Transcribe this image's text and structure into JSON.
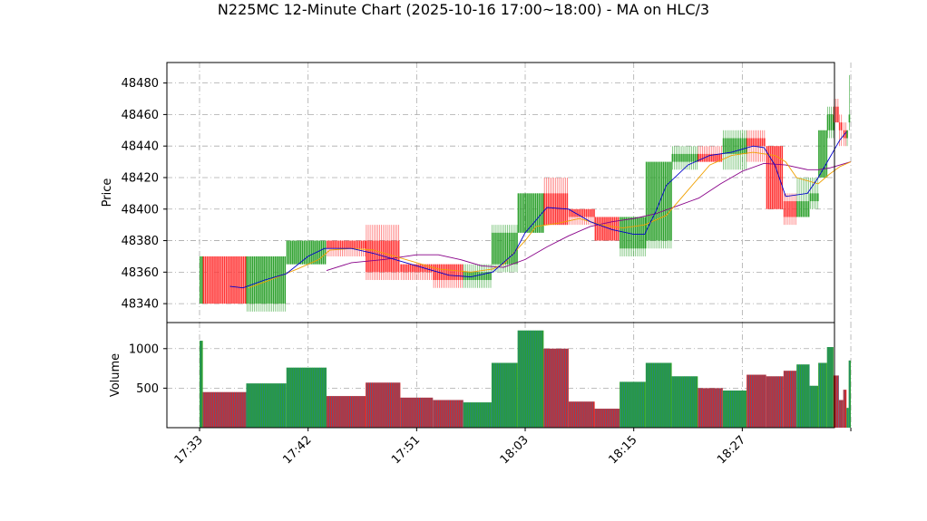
{
  "page": {
    "title": "N225MC 12-Minute Chart (2025-10-16 17:00~18:00) - MA on HLC/3"
  },
  "chart_data": {
    "type": "candlestick",
    "title": "N225MC 12-Minute Chart (2025-10-16 17:00~18:00) - MA on HLC/3",
    "price_panel": {
      "ylabel": "Price",
      "ylim": [
        48328,
        48493
      ],
      "yticks": [
        48340,
        48360,
        48380,
        48400,
        48420,
        48440,
        48460,
        48480
      ],
      "grid": true
    },
    "volume_panel": {
      "ylabel": "Volume",
      "ylim": [
        0,
        1330
      ],
      "yticks": [
        500,
        1000
      ],
      "grid": true
    },
    "xaxis": {
      "range": [
        0,
        61
      ],
      "ticks": [
        {
          "x": 0,
          "label": "17:33"
        },
        {
          "x": 10,
          "label": "17:42"
        },
        {
          "x": 20,
          "label": "17:51"
        },
        {
          "x": 30,
          "label": "18:03"
        },
        {
          "x": 40,
          "label": "18:15"
        },
        {
          "x": 50,
          "label": "18:27"
        },
        {
          "x": 60,
          "label": ""
        }
      ]
    },
    "colors": {
      "up": "#2ca02c",
      "down": "#ff3333",
      "ma_fast": "#0000cc",
      "ma_mid": "#f0a000",
      "ma_slow": "#880088"
    },
    "candles": [
      {
        "x0": 0,
        "x1": 0.3,
        "o": 48340,
        "h": 48370,
        "l": 48340,
        "c": 48370,
        "v": 1100
      },
      {
        "x0": 0.3,
        "x1": 4.3,
        "o": 48370,
        "h": 48370,
        "l": 48340,
        "c": 48340,
        "v": 450
      },
      {
        "x0": 4.3,
        "x1": 8.0,
        "o": 48340,
        "h": 48370,
        "l": 48335,
        "c": 48370,
        "v": 560
      },
      {
        "x0": 8.0,
        "x1": 11.7,
        "o": 48365,
        "h": 48380,
        "l": 48365,
        "c": 48380,
        "v": 760
      },
      {
        "x0": 11.7,
        "x1": 15.3,
        "o": 48380,
        "h": 48380,
        "l": 48370,
        "c": 48375,
        "v": 400
      },
      {
        "x0": 15.3,
        "x1": 18.5,
        "o": 48380,
        "h": 48390,
        "l": 48355,
        "c": 48360,
        "v": 570
      },
      {
        "x0": 18.5,
        "x1": 21.5,
        "o": 48365,
        "h": 48365,
        "l": 48355,
        "c": 48360,
        "v": 380
      },
      {
        "x0": 21.5,
        "x1": 24.3,
        "o": 48365,
        "h": 48365,
        "l": 48350,
        "c": 48355,
        "v": 350
      },
      {
        "x0": 24.3,
        "x1": 26.9,
        "o": 48355,
        "h": 48365,
        "l": 48350,
        "c": 48360,
        "v": 320
      },
      {
        "x0": 26.9,
        "x1": 29.3,
        "o": 48365,
        "h": 48390,
        "l": 48360,
        "c": 48385,
        "v": 820
      },
      {
        "x0": 29.3,
        "x1": 31.7,
        "o": 48385,
        "h": 48410,
        "l": 48385,
        "c": 48410,
        "v": 1230
      },
      {
        "x0": 31.7,
        "x1": 34.0,
        "o": 48410,
        "h": 48420,
        "l": 48390,
        "c": 48390,
        "v": 1000
      },
      {
        "x0": 34.0,
        "x1": 36.4,
        "o": 48400,
        "h": 48400,
        "l": 48390,
        "c": 48395,
        "v": 330
      },
      {
        "x0": 36.4,
        "x1": 38.7,
        "o": 48395,
        "h": 48395,
        "l": 48380,
        "c": 48380,
        "v": 240
      },
      {
        "x0": 38.7,
        "x1": 41.1,
        "o": 48375,
        "h": 48395,
        "l": 48370,
        "c": 48395,
        "v": 580
      },
      {
        "x0": 41.1,
        "x1": 43.5,
        "o": 48380,
        "h": 48430,
        "l": 48375,
        "c": 48430,
        "v": 820
      },
      {
        "x0": 43.5,
        "x1": 45.9,
        "o": 48430,
        "h": 48440,
        "l": 48425,
        "c": 48435,
        "v": 650
      },
      {
        "x0": 45.9,
        "x1": 48.2,
        "o": 48435,
        "h": 48440,
        "l": 48430,
        "c": 48430,
        "v": 500
      },
      {
        "x0": 48.2,
        "x1": 50.4,
        "o": 48435,
        "h": 48450,
        "l": 48425,
        "c": 48445,
        "v": 470
      },
      {
        "x0": 50.4,
        "x1": 52.2,
        "o": 48445,
        "h": 48450,
        "l": 48430,
        "c": 48440,
        "v": 670
      },
      {
        "x0": 52.2,
        "x1": 53.8,
        "o": 48440,
        "h": 48440,
        "l": 48400,
        "c": 48400,
        "v": 650
      },
      {
        "x0": 53.8,
        "x1": 55.0,
        "o": 48405,
        "h": 48410,
        "l": 48390,
        "c": 48395,
        "v": 720
      },
      {
        "x0": 55.0,
        "x1": 56.2,
        "o": 48395,
        "h": 48420,
        "l": 48395,
        "c": 48405,
        "v": 800
      },
      {
        "x0": 56.2,
        "x1": 57.0,
        "o": 48405,
        "h": 48420,
        "l": 48400,
        "c": 48410,
        "v": 530
      },
      {
        "x0": 57.0,
        "x1": 57.8,
        "o": 48420,
        "h": 48450,
        "l": 48420,
        "c": 48450,
        "v": 820
      },
      {
        "x0": 57.8,
        "x1": 58.4,
        "o": 48450,
        "h": 48465,
        "l": 48445,
        "c": 48460,
        "v": 1020
      },
      {
        "x0": 58.4,
        "x1": 58.9,
        "o": 48465,
        "h": 48470,
        "l": 48455,
        "c": 48455,
        "v": 660
      },
      {
        "x0": 58.9,
        "x1": 59.3,
        "o": 48455,
        "h": 48460,
        "l": 48440,
        "c": 48450,
        "v": 350
      },
      {
        "x0": 59.3,
        "x1": 59.6,
        "o": 48450,
        "h": 48455,
        "l": 48440,
        "c": 48445,
        "v": 480
      },
      {
        "x0": 59.6,
        "x1": 59.8,
        "o": 48445,
        "h": 48450,
        "l": 48440,
        "c": 48450,
        "v": 250
      },
      {
        "x0": 59.8,
        "x1": 60.0,
        "o": 48455,
        "h": 48485,
        "l": 48450,
        "c": 48460,
        "v": 850
      }
    ],
    "ma_fast": [
      [
        2.8,
        48351
      ],
      [
        4,
        48350
      ],
      [
        6,
        48355
      ],
      [
        8,
        48359
      ],
      [
        10,
        48370
      ],
      [
        11.5,
        48375
      ],
      [
        14,
        48375
      ],
      [
        16,
        48372
      ],
      [
        19,
        48366
      ],
      [
        21,
        48362
      ],
      [
        23,
        48358
      ],
      [
        25,
        48357
      ],
      [
        27,
        48360
      ],
      [
        29,
        48372
      ],
      [
        30,
        48385
      ],
      [
        32,
        48401
      ],
      [
        34,
        48400
      ],
      [
        36,
        48392
      ],
      [
        38,
        48387
      ],
      [
        40,
        48384
      ],
      [
        41,
        48384
      ],
      [
        42,
        48398
      ],
      [
        43,
        48415
      ],
      [
        45,
        48428
      ],
      [
        47,
        48434
      ],
      [
        49,
        48436
      ],
      [
        51,
        48440
      ],
      [
        52,
        48439
      ],
      [
        53,
        48428
      ],
      [
        54,
        48408
      ],
      [
        56,
        48410
      ],
      [
        57,
        48420
      ],
      [
        58,
        48432
      ],
      [
        59,
        48444
      ],
      [
        59.6,
        48449
      ]
    ],
    "ma_mid": [
      [
        4.5,
        48350
      ],
      [
        6.5,
        48355
      ],
      [
        9,
        48362
      ],
      [
        11,
        48368
      ],
      [
        12,
        48374
      ],
      [
        14,
        48375
      ],
      [
        16,
        48374
      ],
      [
        19,
        48368
      ],
      [
        22,
        48362
      ],
      [
        25,
        48360
      ],
      [
        27,
        48362
      ],
      [
        28,
        48365
      ],
      [
        30,
        48380
      ],
      [
        31,
        48389
      ],
      [
        33,
        48391
      ],
      [
        35,
        48394
      ],
      [
        37,
        48390
      ],
      [
        39,
        48388
      ],
      [
        41,
        48390
      ],
      [
        43,
        48396
      ],
      [
        45,
        48412
      ],
      [
        47,
        48428
      ],
      [
        49,
        48434
      ],
      [
        51,
        48436
      ],
      [
        53,
        48434
      ],
      [
        54,
        48430
      ],
      [
        55,
        48420
      ],
      [
        56,
        48418
      ],
      [
        57,
        48416
      ],
      [
        58,
        48422
      ],
      [
        59,
        48427
      ],
      [
        60,
        48430
      ]
    ],
    "ma_slow": [
      [
        11.7,
        48361
      ],
      [
        14,
        48366
      ],
      [
        17,
        48368
      ],
      [
        20,
        48371
      ],
      [
        22,
        48371
      ],
      [
        24,
        48368
      ],
      [
        26,
        48364
      ],
      [
        28,
        48363
      ],
      [
        30,
        48368
      ],
      [
        32,
        48376
      ],
      [
        34,
        48383
      ],
      [
        36,
        48389
      ],
      [
        38,
        48392
      ],
      [
        40,
        48394
      ],
      [
        42,
        48397
      ],
      [
        44,
        48402
      ],
      [
        46,
        48407
      ],
      [
        48,
        48416
      ],
      [
        50,
        48424
      ],
      [
        52,
        48429
      ],
      [
        54,
        48428
      ],
      [
        56,
        48425
      ],
      [
        57,
        48425
      ],
      [
        58,
        48426
      ],
      [
        59,
        48428
      ],
      [
        60,
        48430
      ]
    ]
  }
}
